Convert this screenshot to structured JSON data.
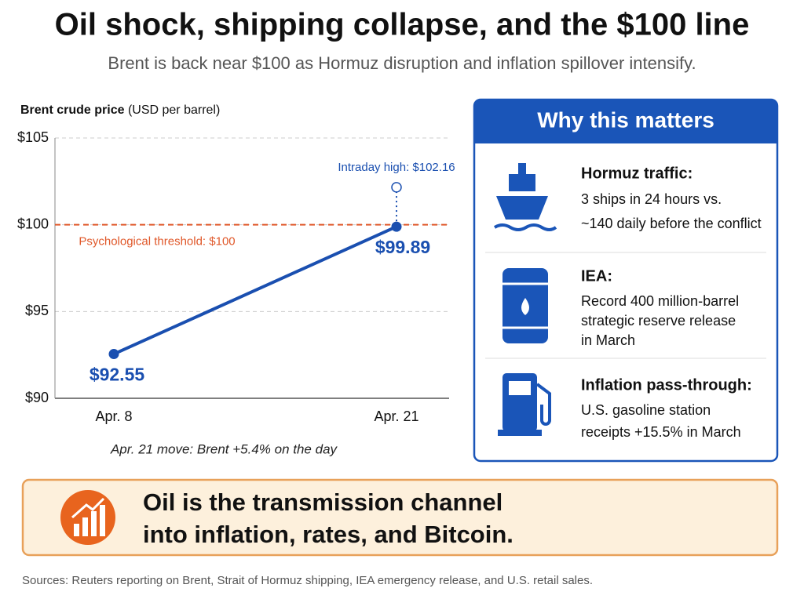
{
  "header": {
    "title": "Oil shock, shipping collapse, and the $100 line",
    "subtitle": "Brent is back near $100 as Hormuz disruption and inflation spillover intensify."
  },
  "chart_data": {
    "type": "line",
    "y_label": "Brent crude price",
    "y_unit": "(USD per barrel)",
    "categories": [
      "Apr. 8",
      "Apr. 21"
    ],
    "values": [
      92.55,
      99.89
    ],
    "value_labels": [
      "$92.55",
      "$99.89"
    ],
    "color": "#1a4fb0",
    "ylim": [
      90,
      105
    ],
    "yticks": [
      {
        "value": 90,
        "label": "$90"
      },
      {
        "value": 95,
        "label": "$95"
      },
      {
        "value": 100,
        "label": "$100"
      },
      {
        "value": 105,
        "label": "$105"
      }
    ],
    "grid": true,
    "threshold": {
      "value": 100,
      "label": "Psychological threshold: $100",
      "color": "#e0582a"
    },
    "intraday_high": {
      "value": 102.16,
      "label": "Intraday high: $102.16"
    },
    "note": "Apr. 21 move: Brent +5.4% on the day"
  },
  "panel": {
    "title": "Why this matters",
    "items": [
      {
        "title": "Hormuz traffic:",
        "lines": [
          "3 ships in 24 hours vs.",
          "~140 daily before the conflict"
        ]
      },
      {
        "title": "IEA:",
        "lines": [
          "Record 400 million-barrel",
          "strategic reserve release",
          "in March"
        ]
      },
      {
        "title": "Inflation pass-through:",
        "lines": [
          "U.S. gasoline station",
          "receipts +15.5% in March"
        ]
      }
    ]
  },
  "banner": {
    "lines": [
      "Oil is the transmission channel",
      "into inflation, rates, and Bitcoin."
    ]
  },
  "sources": "Sources: Reuters reporting on Brent, Strait of Hormuz shipping, IEA emergency release, and U.S. retail sales."
}
